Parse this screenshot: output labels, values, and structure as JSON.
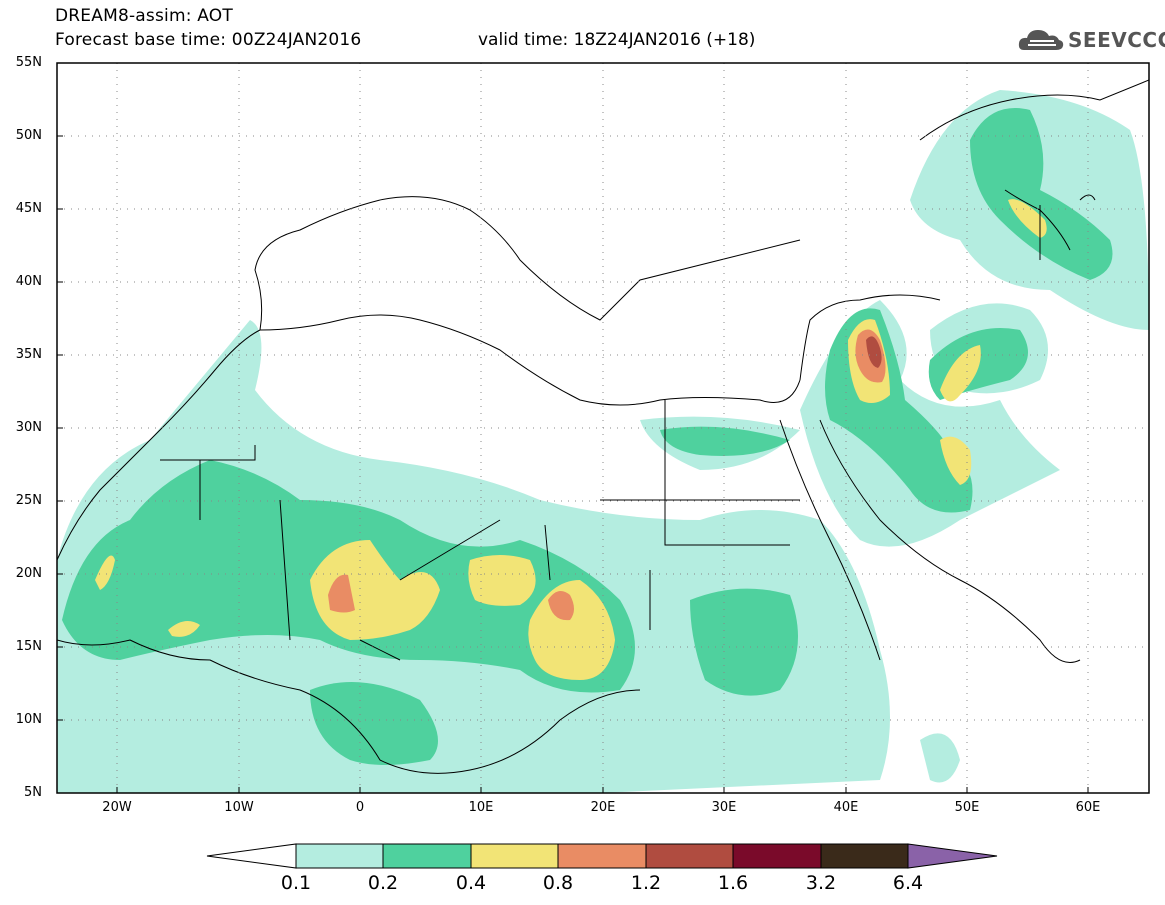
{
  "header": {
    "line1": "DREAM8-assim: AOT",
    "line2": "Forecast base time: 00Z24JAN2016",
    "valid": "valid time: 18Z24JAN2016 (+18)"
  },
  "logo": {
    "text": "SEEVCCC",
    "icon": "cloud-icon"
  },
  "map": {
    "projection": "lat-lon",
    "lon_range": [
      -25,
      65
    ],
    "lat_range": [
      5,
      55
    ],
    "grid": "dotted",
    "lat_labels": [
      "55N",
      "50N",
      "45N",
      "40N",
      "35N",
      "30N",
      "25N",
      "20N",
      "15N",
      "10N",
      "5N"
    ],
    "lon_labels": [
      "20W",
      "10W",
      "0",
      "10E",
      "20E",
      "30E",
      "40E",
      "50E",
      "60E"
    ]
  },
  "colorbar": {
    "labels": [
      "0.1",
      "0.2",
      "0.4",
      "0.8",
      "1.2",
      "1.6",
      "3.2",
      "6.4"
    ],
    "colors": [
      "#ffffff",
      "#b4ede0",
      "#4fd19e",
      "#f2e476",
      "#e98c64",
      "#b04c40",
      "#7a0a2a",
      "#3a2a1a",
      "#8a62a8"
    ]
  }
}
